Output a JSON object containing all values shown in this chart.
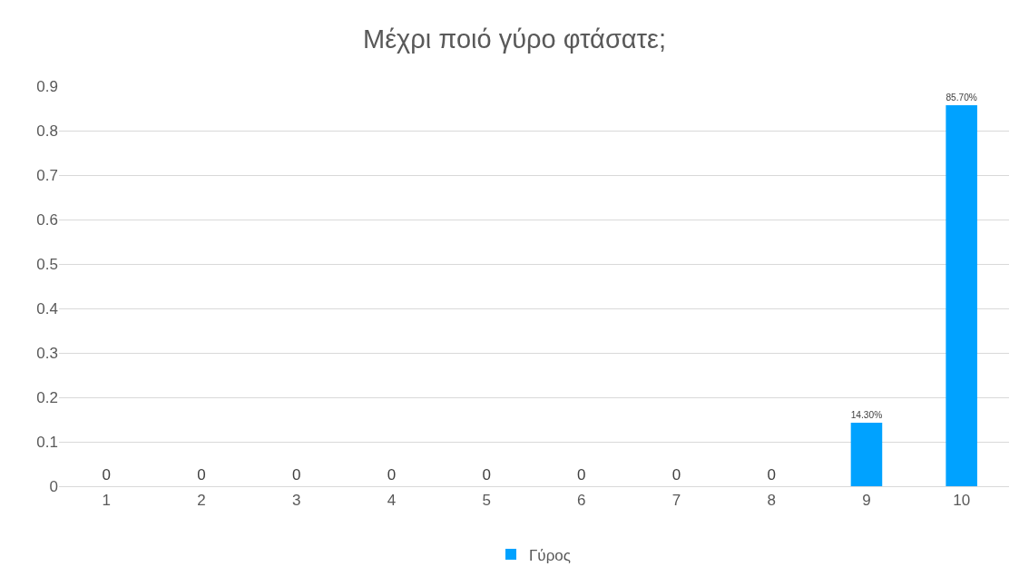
{
  "chart_data": {
    "type": "bar",
    "title": "Μέχρι ποιό γύρο φτάσατε;",
    "categories": [
      "1",
      "2",
      "3",
      "4",
      "5",
      "6",
      "7",
      "8",
      "9",
      "10"
    ],
    "series": [
      {
        "name": "Γύρος",
        "color": "#00a2ff",
        "values": [
          0,
          0,
          0,
          0,
          0,
          0,
          0,
          0,
          0.143,
          0.857
        ],
        "value_labels": [
          "0",
          "0",
          "0",
          "0",
          "0",
          "0",
          "0",
          "0",
          "14.30%",
          "85.70%"
        ]
      }
    ],
    "ylim": [
      0,
      0.9
    ],
    "yticks": [
      0,
      0.1,
      0.2,
      0.3,
      0.4,
      0.5,
      0.6,
      0.7,
      0.8,
      0.9
    ],
    "grid": "y",
    "legend": "bottom"
  }
}
